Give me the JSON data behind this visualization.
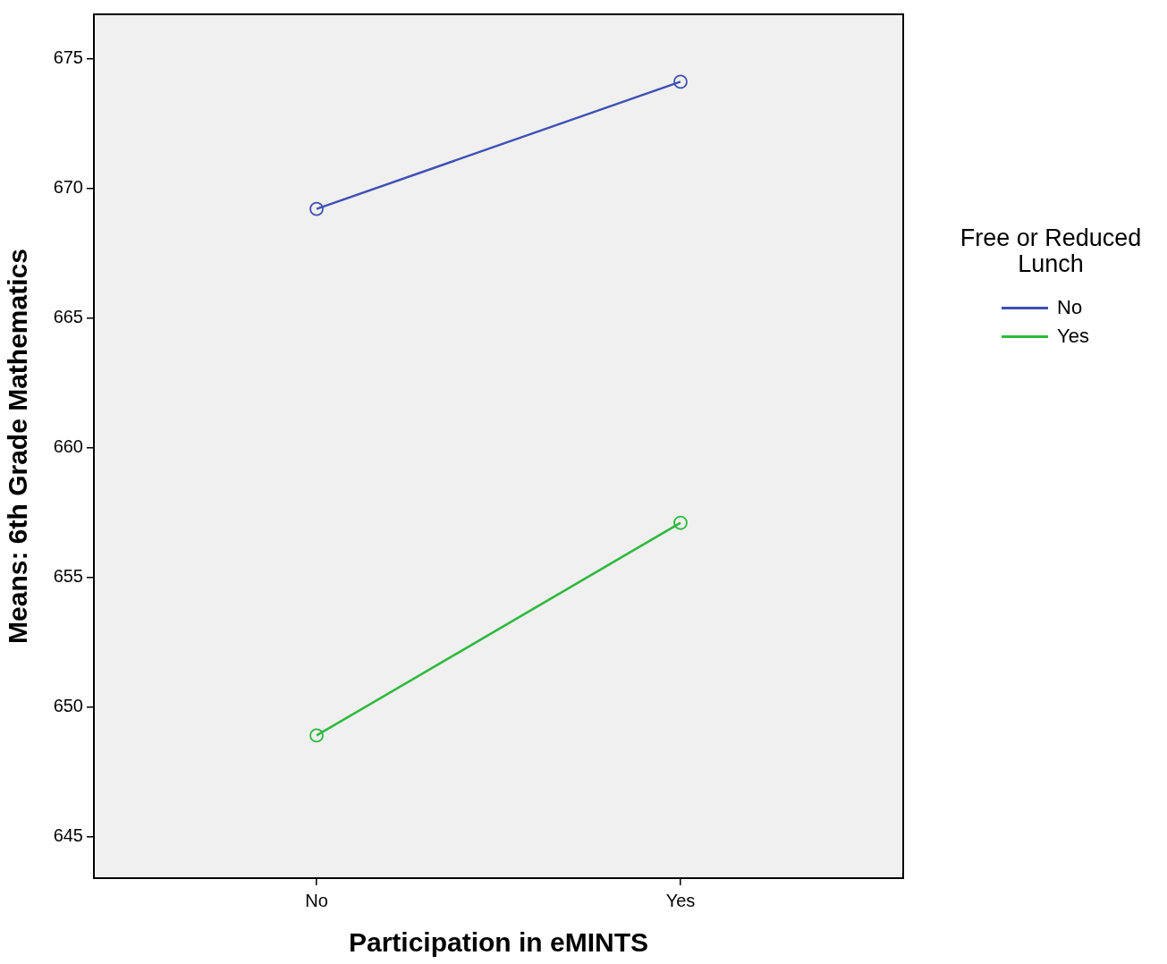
{
  "chart_data": {
    "type": "line",
    "xlabel": "Participation in eMINTS",
    "ylabel": "Means: 6th Grade Mathematics",
    "legend_title": "Free or Reduced Lunch",
    "categories": [
      "No",
      "Yes"
    ],
    "series": [
      {
        "name": "No",
        "color": "#3e50b4",
        "values": [
          669.2,
          674.1
        ]
      },
      {
        "name": "Yes",
        "color": "#2db83d",
        "values": [
          648.9,
          657.1
        ]
      }
    ],
    "ylim": [
      643.4,
      676.7
    ],
    "yticks": [
      645,
      650,
      655,
      660,
      665,
      670,
      675
    ],
    "grid": false,
    "legend": "right",
    "marker": "circle",
    "line_style": "solid"
  }
}
